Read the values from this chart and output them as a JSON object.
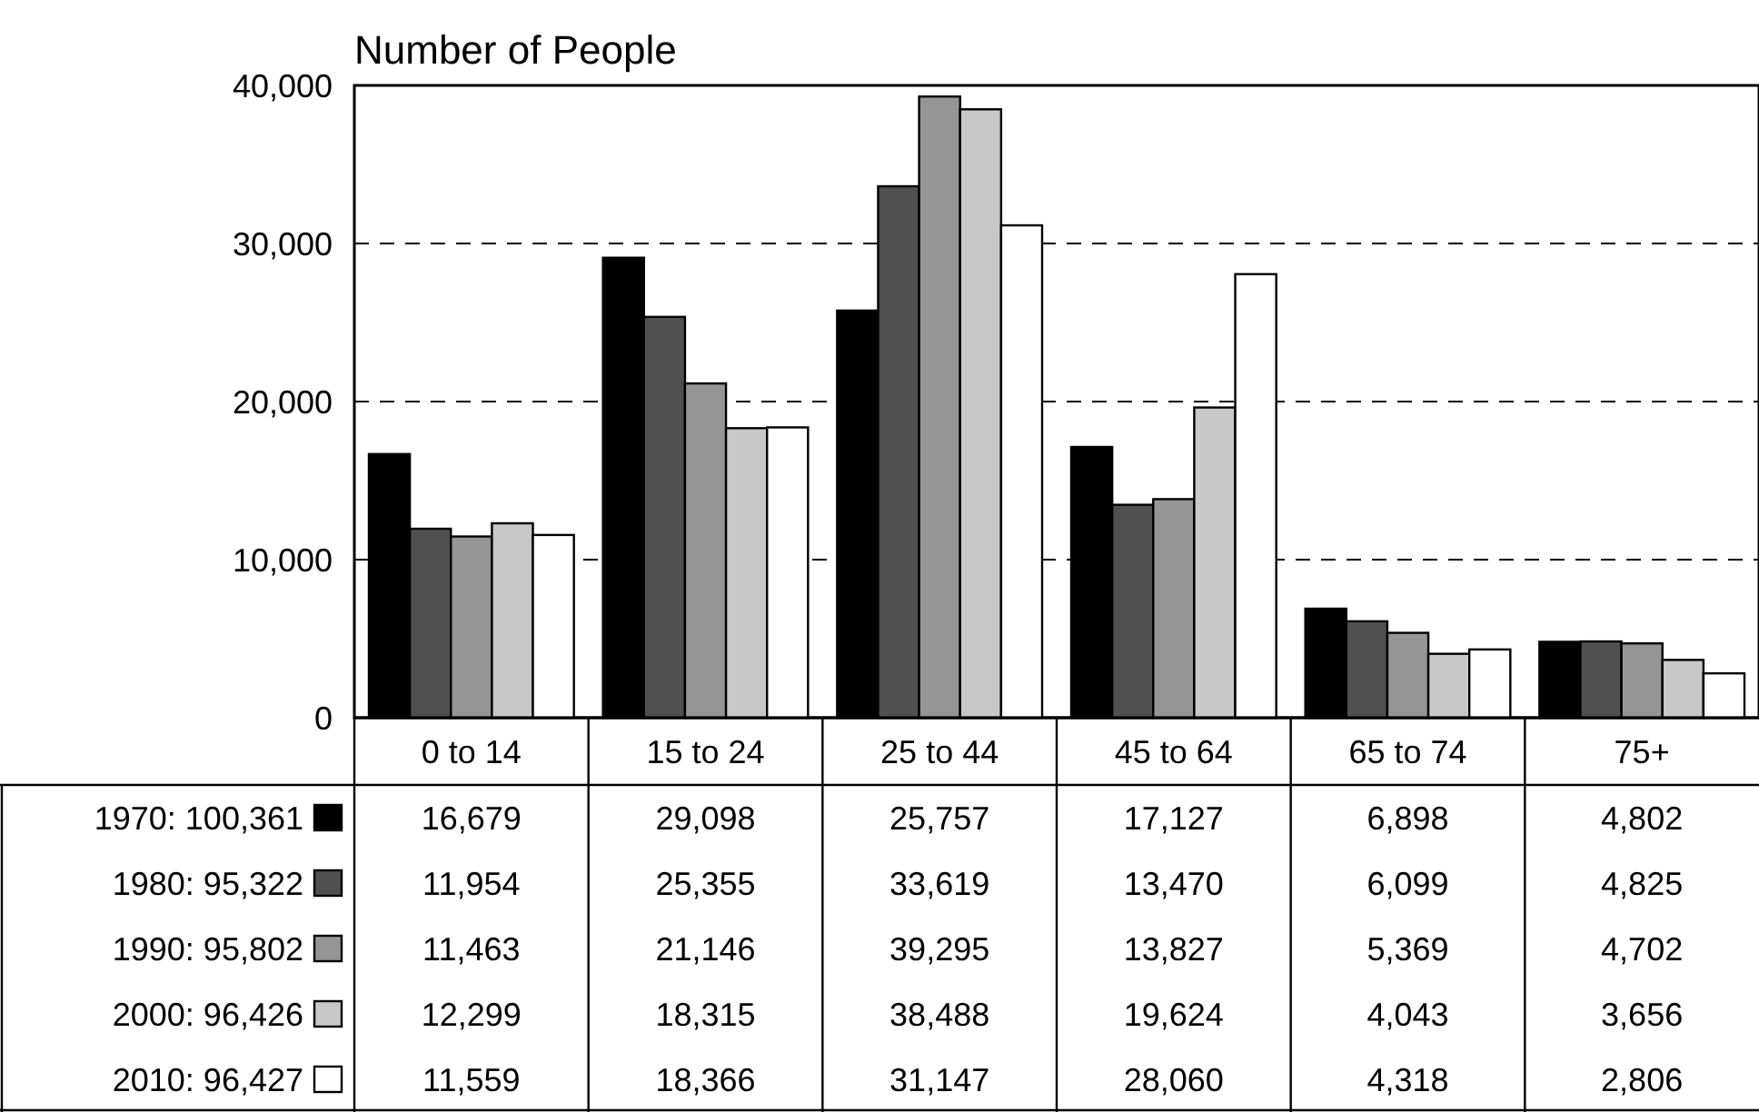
{
  "chart_data": {
    "type": "bar",
    "title": "Number of People",
    "categories": [
      "0 to 14",
      "15 to 24",
      "25 to 44",
      "45 to 64",
      "65 to 74",
      "75+"
    ],
    "series": [
      {
        "name": "1970: 100,361",
        "color": "#000000",
        "values": [
          16679,
          29098,
          25757,
          17127,
          6898,
          4802
        ],
        "value_labels": [
          "16,679",
          "29,098",
          "25,757",
          "17,127",
          "6,898",
          "4,802"
        ]
      },
      {
        "name": "1980: 95,322",
        "color": "#505050",
        "values": [
          11954,
          25355,
          33619,
          13470,
          6099,
          4825
        ],
        "value_labels": [
          "11,954",
          "25,355",
          "33,619",
          "13,470",
          "6,099",
          "4,825"
        ]
      },
      {
        "name": "1990: 95,802",
        "color": "#959595",
        "values": [
          11463,
          21146,
          39295,
          13827,
          5369,
          4702
        ],
        "value_labels": [
          "11,463",
          "21,146",
          "39,295",
          "13,827",
          "5,369",
          "4,702"
        ]
      },
      {
        "name": "2000: 96,426",
        "color": "#c8c8c8",
        "values": [
          12299,
          18315,
          38488,
          19624,
          4043,
          3656
        ],
        "value_labels": [
          "12,299",
          "18,315",
          "38,488",
          "19,624",
          "4,043",
          "3,656"
        ]
      },
      {
        "name": "2010: 96,427",
        "color": "#ffffff",
        "values": [
          11559,
          18366,
          31147,
          28060,
          4318,
          2806
        ],
        "value_labels": [
          "11,559",
          "18,366",
          "31,147",
          "28,060",
          "4,318",
          "2,806"
        ]
      }
    ],
    "ylim": [
      0,
      40000
    ],
    "yticks": [
      {
        "value": 0,
        "label": "0"
      },
      {
        "value": 10000,
        "label": "10,000"
      },
      {
        "value": 20000,
        "label": "20,000"
      },
      {
        "value": 30000,
        "label": "30,000"
      },
      {
        "value": 40000,
        "label": "40,000"
      }
    ],
    "grid": "y",
    "legend": "bottom left"
  }
}
